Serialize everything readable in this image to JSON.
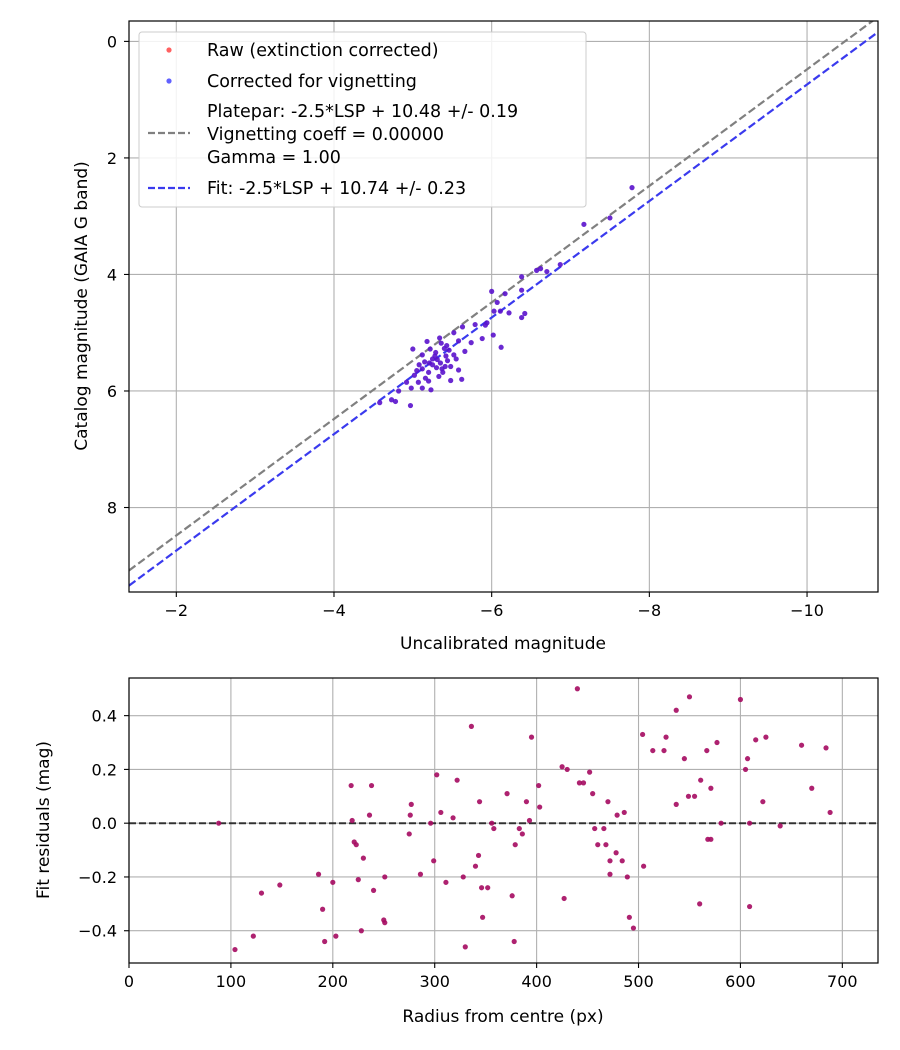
{
  "chart_data": [
    {
      "type": "scatter",
      "xlabel": "Uncalibrated magnitude",
      "ylabel": "Catalog magnitude (GAIA G band)",
      "xlim": [
        -1.4,
        -10.9
      ],
      "ylim": [
        9.45,
        -0.35
      ],
      "x_inverted": true,
      "y_inverted": true,
      "xticks": [
        -2,
        -4,
        -6,
        -8,
        -10
      ],
      "xtick_labels": [
        "−2",
        "−4",
        "−6",
        "−8",
        "−10"
      ],
      "yticks": [
        0,
        2,
        4,
        6,
        8
      ],
      "ytick_labels": [
        "0",
        "2",
        "4",
        "6",
        "8"
      ],
      "grid": true,
      "legend": {
        "position": "top-left",
        "entries": [
          {
            "label": "Raw (extinction corrected)",
            "kind": "marker",
            "color": "#ff3a3a"
          },
          {
            "label": "Corrected for vignetting",
            "kind": "marker",
            "color": "#3a3aff"
          },
          {
            "label_lines": [
              "Platepar: -2.5*LSP + 10.48 +/- 0.19",
              "Vignetting coeff = 0.00000",
              "Gamma = 1.00"
            ],
            "kind": "line",
            "color": "#808080"
          },
          {
            "label": "Fit: -2.5*LSP + 10.74 +/- 0.23",
            "kind": "line",
            "color": "#3a3aee"
          }
        ]
      },
      "lines": [
        {
          "name": "Platepar",
          "slope": 1.0,
          "intercept": 10.48,
          "color": "#808080",
          "dash": true
        },
        {
          "name": "Fit",
          "slope": 1.0,
          "intercept": 10.74,
          "color": "#3a3aee",
          "dash": true
        }
      ],
      "series": [
        {
          "name": "Corrected for vignetting",
          "color": "#5a12cc",
          "points": [
            [
              -7.78,
              2.51
            ],
            [
              -7.17,
              3.14
            ],
            [
              -7.5,
              3.03
            ],
            [
              -6.87,
              3.83
            ],
            [
              -6.62,
              3.9
            ],
            [
              -6.7,
              3.95
            ],
            [
              -6.57,
              3.93
            ],
            [
              -6.38,
              4.04
            ],
            [
              -6.38,
              4.27
            ],
            [
              -6.0,
              4.29
            ],
            [
              -6.17,
              4.33
            ],
            [
              -6.07,
              4.48
            ],
            [
              -6.03,
              4.63
            ],
            [
              -6.11,
              4.63
            ],
            [
              -6.22,
              4.66
            ],
            [
              -6.42,
              4.67
            ],
            [
              -6.38,
              4.74
            ],
            [
              -5.94,
              4.83
            ],
            [
              -5.79,
              4.86
            ],
            [
              -5.92,
              4.87
            ],
            [
              -6.02,
              5.04
            ],
            [
              -5.88,
              5.1
            ],
            [
              -5.74,
              5.17
            ],
            [
              -5.63,
              4.9
            ],
            [
              -6.12,
              5.25
            ],
            [
              -5.52,
              5.0
            ],
            [
              -5.58,
              5.14
            ],
            [
              -5.34,
              5.09
            ],
            [
              -5.18,
              5.15
            ],
            [
              -5.22,
              5.28
            ],
            [
              -5.4,
              5.27
            ],
            [
              -5.0,
              5.28
            ],
            [
              -5.12,
              5.38
            ],
            [
              -5.55,
              5.45
            ],
            [
              -5.44,
              5.48
            ],
            [
              -5.35,
              5.52
            ],
            [
              -5.25,
              5.55
            ],
            [
              -5.3,
              5.6
            ],
            [
              -5.12,
              5.62
            ],
            [
              -5.05,
              5.65
            ],
            [
              -5.2,
              5.68
            ],
            [
              -5.02,
              5.73
            ],
            [
              -5.33,
              5.75
            ],
            [
              -5.58,
              5.64
            ],
            [
              -5.62,
              5.8
            ],
            [
              -5.48,
              5.82
            ],
            [
              -5.2,
              5.83
            ],
            [
              -5.07,
              5.85
            ],
            [
              -4.98,
              5.95
            ],
            [
              -4.82,
              6.0
            ],
            [
              -5.12,
              5.95
            ],
            [
              -5.23,
              5.98
            ],
            [
              -4.92,
              5.85
            ],
            [
              -4.73,
              6.15
            ],
            [
              -4.58,
              6.2
            ],
            [
              -4.97,
              6.25
            ],
            [
              -4.78,
              6.18
            ],
            [
              -5.66,
              5.32
            ],
            [
              -5.29,
              5.34
            ],
            [
              -5.42,
              5.4
            ],
            [
              -5.48,
              5.58
            ],
            [
              -5.37,
              5.62
            ],
            [
              -5.15,
              5.5
            ],
            [
              -5.25,
              5.45
            ],
            [
              -5.41,
              5.58
            ],
            [
              -5.38,
              5.68
            ],
            [
              -5.31,
              5.46
            ],
            [
              -5.43,
              5.22
            ],
            [
              -5.36,
              5.18
            ],
            [
              -5.28,
              5.4
            ],
            [
              -5.21,
              5.52
            ],
            [
              -5.08,
              5.55
            ],
            [
              -5.16,
              5.78
            ],
            [
              -5.46,
              5.3
            ],
            [
              -5.52,
              5.38
            ]
          ]
        }
      ]
    },
    {
      "type": "scatter",
      "xlabel": "Radius from centre (px)",
      "ylabel": "Fit residuals (mag)",
      "xlim": [
        0,
        735
      ],
      "ylim": [
        -0.52,
        0.54
      ],
      "xticks": [
        0,
        100,
        200,
        300,
        400,
        500,
        600,
        700
      ],
      "xtick_labels": [
        "0",
        "100",
        "200",
        "300",
        "400",
        "500",
        "600",
        "700"
      ],
      "yticks": [
        -0.4,
        -0.2,
        0.0,
        0.2,
        0.4
      ],
      "ytick_labels": [
        "−0.4",
        "−0.2",
        "0.0",
        "0.2",
        "0.4"
      ],
      "grid": true,
      "reference_line": {
        "y": 0.0,
        "color": "#000000",
        "dash": true
      },
      "series": [
        {
          "name": "Fit residuals",
          "color": "#a50a60",
          "points": [
            [
              88,
              0.0
            ],
            [
              104,
              -0.47
            ],
            [
              122,
              -0.42
            ],
            [
              130,
              -0.26
            ],
            [
              148,
              -0.23
            ],
            [
              186,
              -0.19
            ],
            [
              190,
              -0.32
            ],
            [
              192,
              -0.44
            ],
            [
              200,
              -0.22
            ],
            [
              203,
              -0.42
            ],
            [
              218,
              0.14
            ],
            [
              219,
              0.01
            ],
            [
              221,
              -0.07
            ],
            [
              223,
              -0.08
            ],
            [
              225,
              -0.21
            ],
            [
              228,
              -0.4
            ],
            [
              230,
              -0.13
            ],
            [
              236,
              0.03
            ],
            [
              238,
              0.14
            ],
            [
              240,
              -0.25
            ],
            [
              250,
              -0.36
            ],
            [
              251,
              -0.37
            ],
            [
              251,
              -0.2
            ],
            [
              275,
              -0.04
            ],
            [
              276,
              0.03
            ],
            [
              277,
              0.07
            ],
            [
              286,
              -0.19
            ],
            [
              296,
              0.0
            ],
            [
              299,
              -0.14
            ],
            [
              302,
              0.18
            ],
            [
              306,
              0.04
            ],
            [
              311,
              -0.22
            ],
            [
              318,
              0.02
            ],
            [
              322,
              0.16
            ],
            [
              328,
              -0.2
            ],
            [
              330,
              -0.46
            ],
            [
              336,
              0.36
            ],
            [
              340,
              -0.16
            ],
            [
              343,
              -0.12
            ],
            [
              344,
              0.08
            ],
            [
              346,
              -0.24
            ],
            [
              347,
              -0.35
            ],
            [
              352,
              -0.24
            ],
            [
              356,
              0.0
            ],
            [
              358,
              -0.02
            ],
            [
              371,
              0.11
            ],
            [
              376,
              -0.27
            ],
            [
              378,
              -0.44
            ],
            [
              379,
              -0.08
            ],
            [
              383,
              -0.02
            ],
            [
              386,
              -0.04
            ],
            [
              390,
              0.08
            ],
            [
              393,
              0.01
            ],
            [
              395,
              0.32
            ],
            [
              402,
              0.14
            ],
            [
              403,
              0.06
            ],
            [
              425,
              0.21
            ],
            [
              427,
              -0.28
            ],
            [
              430,
              0.2
            ],
            [
              440,
              0.5
            ],
            [
              442,
              0.15
            ],
            [
              446,
              0.15
            ],
            [
              452,
              0.19
            ],
            [
              455,
              0.11
            ],
            [
              457,
              -0.02
            ],
            [
              460,
              -0.08
            ],
            [
              466,
              -0.02
            ],
            [
              468,
              -0.08
            ],
            [
              470,
              0.08
            ],
            [
              472,
              -0.14
            ],
            [
              472,
              -0.19
            ],
            [
              478,
              -0.11
            ],
            [
              479,
              0.03
            ],
            [
              484,
              -0.14
            ],
            [
              486,
              0.04
            ],
            [
              489,
              -0.2
            ],
            [
              491,
              -0.35
            ],
            [
              495,
              -0.39
            ],
            [
              504,
              0.33
            ],
            [
              505,
              -0.16
            ],
            [
              514,
              0.27
            ],
            [
              525,
              0.27
            ],
            [
              527,
              0.32
            ],
            [
              537,
              0.07
            ],
            [
              537,
              0.42
            ],
            [
              545,
              0.24
            ],
            [
              549,
              0.1
            ],
            [
              550,
              0.47
            ],
            [
              555,
              0.1
            ],
            [
              560,
              -0.3
            ],
            [
              561,
              0.16
            ],
            [
              567,
              0.27
            ],
            [
              568,
              -0.06
            ],
            [
              571,
              0.13
            ],
            [
              571,
              -0.06
            ],
            [
              577,
              0.3
            ],
            [
              581,
              0.0
            ],
            [
              600,
              0.46
            ],
            [
              605,
              0.2
            ],
            [
              607,
              0.24
            ],
            [
              609,
              0.0
            ],
            [
              609,
              -0.31
            ],
            [
              615,
              0.31
            ],
            [
              622,
              0.08
            ],
            [
              625,
              0.32
            ],
            [
              639,
              -0.01
            ],
            [
              660,
              0.29
            ],
            [
              670,
              0.13
            ],
            [
              684,
              0.28
            ],
            [
              688,
              0.04
            ]
          ]
        }
      ]
    }
  ]
}
